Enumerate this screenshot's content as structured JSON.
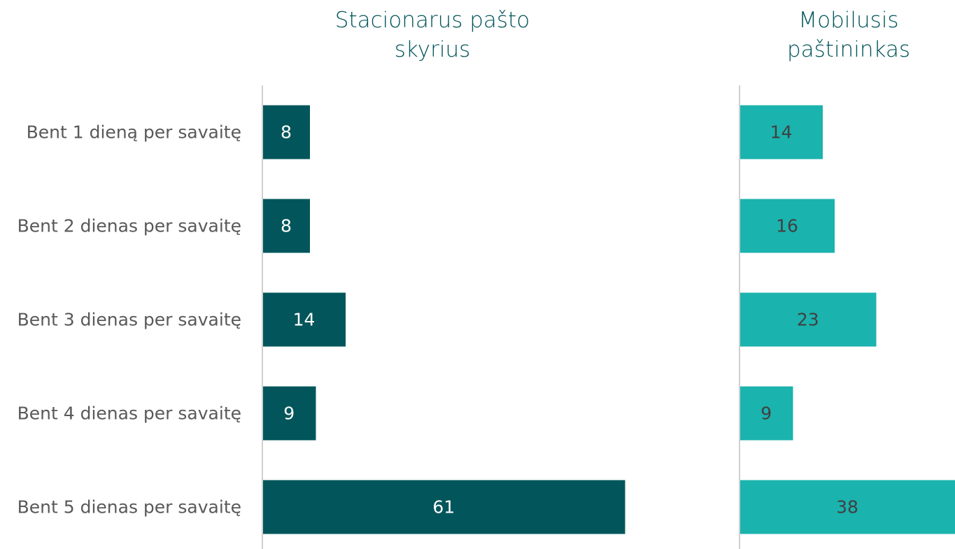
{
  "chart_data": {
    "type": "bar",
    "categories": [
      "Bent 1 dieną per savaitę",
      "Bent 2 dienas per savaitę",
      "Bent 3 dienas per savaitę",
      "Bent 4 dienas per savaitę",
      "Bent 5 dienas per savaitę"
    ],
    "series": [
      {
        "name": "Stacionarus pašto skyrius",
        "color": "#02565b",
        "values": [
          8,
          8,
          14,
          9,
          61
        ]
      },
      {
        "name": "Mobilusis paštininkas",
        "color": "#1bb3ae",
        "values": [
          14,
          16,
          23,
          9,
          38
        ]
      }
    ]
  }
}
